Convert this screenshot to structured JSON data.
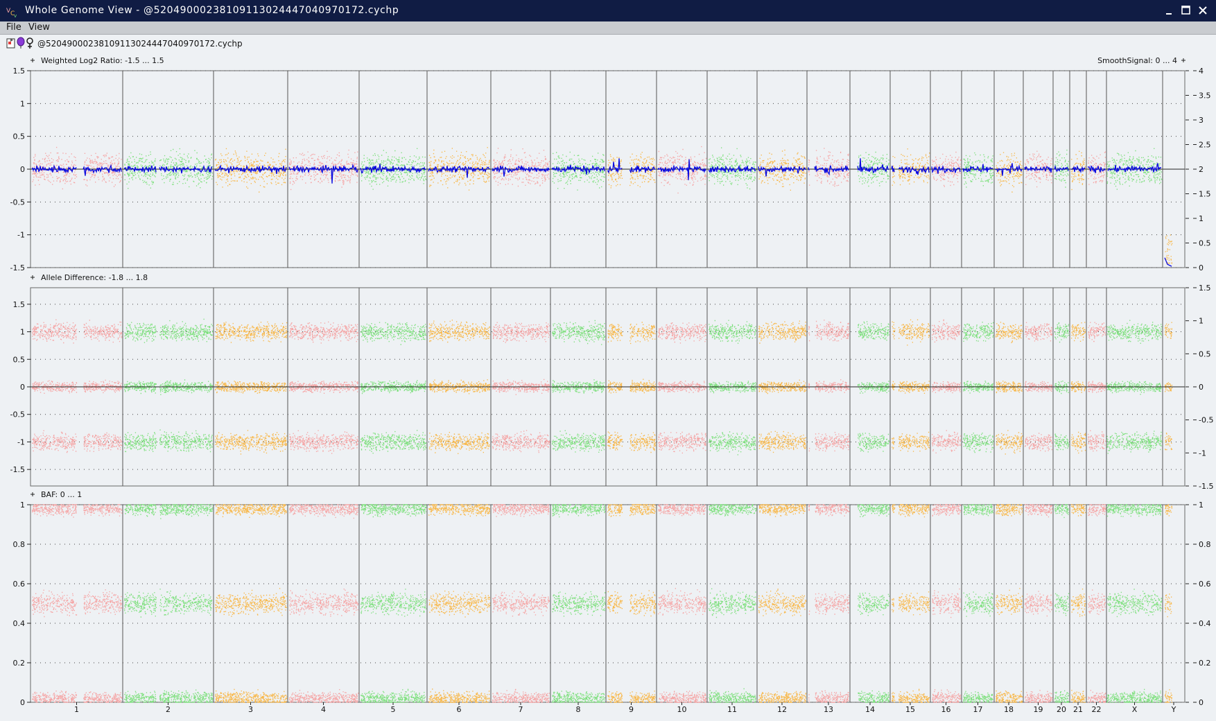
{
  "window": {
    "title": "Whole Genome View - @52049000238109113024447040970172.cychp"
  },
  "menu": {
    "file": "File",
    "view": "View"
  },
  "toolbar": {
    "icons": [
      "select-icon",
      "balloon-icon",
      "female-symbol-icon"
    ],
    "filename": "@52049000238109113024447040970172.cychp"
  },
  "colors": {
    "pink": "#f5a5a5",
    "green": "#7de07d",
    "orange": "#f8b84a",
    "line": "#0a0ae0",
    "background": "#eef1f4",
    "titlebar": "#101c44"
  },
  "chromosomes": [
    "1",
    "2",
    "3",
    "4",
    "5",
    "6",
    "7",
    "8",
    "9",
    "10",
    "11",
    "12",
    "13",
    "14",
    "15",
    "16",
    "17",
    "18",
    "19",
    "20",
    "21",
    "22",
    "X",
    "Y"
  ],
  "panels": [
    {
      "label": "Weighted Log2 Ratio: -1.5 ... 1.5",
      "right_label": "SmoothSignal: 0 ... 4",
      "left_ticks": [
        "1.5",
        "1",
        "0.5",
        "0",
        "-0.5",
        "-1",
        "-1.5"
      ],
      "right_ticks": [
        "4",
        "3.5",
        "3",
        "2.5",
        "2",
        "1.5",
        "1",
        "0.5",
        "0"
      ]
    },
    {
      "label": "Allele Difference: -1.8 ... 1.8",
      "left_ticks": [
        "1.5",
        "1",
        "0.5",
        "0",
        "-0.5",
        "-1",
        "-1.5"
      ],
      "right_ticks": [
        "1.5",
        "1",
        "0.5",
        "0",
        "-0.5",
        "-1",
        "-1.5"
      ]
    },
    {
      "label": "BAF: 0 ... 1",
      "left_ticks": [
        "1",
        "0.8",
        "0.6",
        "0.4",
        "0.2",
        "0"
      ],
      "right_ticks": [
        "1",
        "0.8",
        "0.6",
        "0.4",
        "0.2",
        "0"
      ]
    }
  ]
}
